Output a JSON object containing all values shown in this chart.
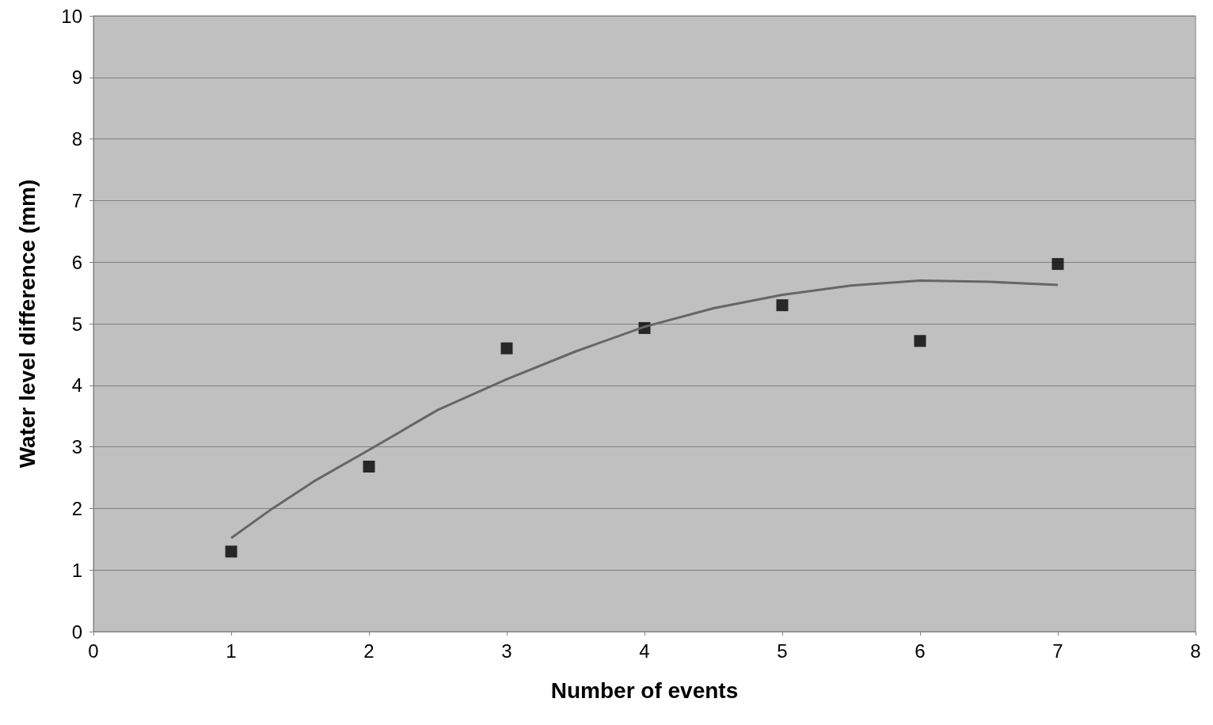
{
  "chart_data": {
    "type": "scatter",
    "xlabel": "Number of events",
    "ylabel": "Water level difference (mm)",
    "xlim": [
      0,
      8
    ],
    "xticks": [
      0,
      1,
      2,
      3,
      4,
      5,
      6,
      7,
      8
    ],
    "ylim": [
      0,
      10
    ],
    "yticks": [
      0,
      1,
      2,
      3,
      4,
      5,
      6,
      7,
      8,
      9,
      10
    ],
    "grid": "y",
    "series": [
      {
        "color": "#000000",
        "marker": "square",
        "x": [
          1,
          2,
          3,
          4,
          5,
          6,
          7
        ],
        "values": [
          1.3,
          2.68,
          4.6,
          4.93,
          5.3,
          4.72,
          5.97
        ]
      },
      {
        "type": "line",
        "color": "#666666",
        "marker": "none",
        "line_style": "solid",
        "x": [
          1,
          1.3,
          1.6,
          2,
          2.5,
          3,
          3.5,
          4,
          4.5,
          5,
          5.5,
          6,
          6.5,
          7
        ],
        "values": [
          1.52,
          2.0,
          2.44,
          2.95,
          3.6,
          4.1,
          4.55,
          4.95,
          5.25,
          5.47,
          5.62,
          5.7,
          5.68,
          5.63
        ]
      }
    ]
  }
}
